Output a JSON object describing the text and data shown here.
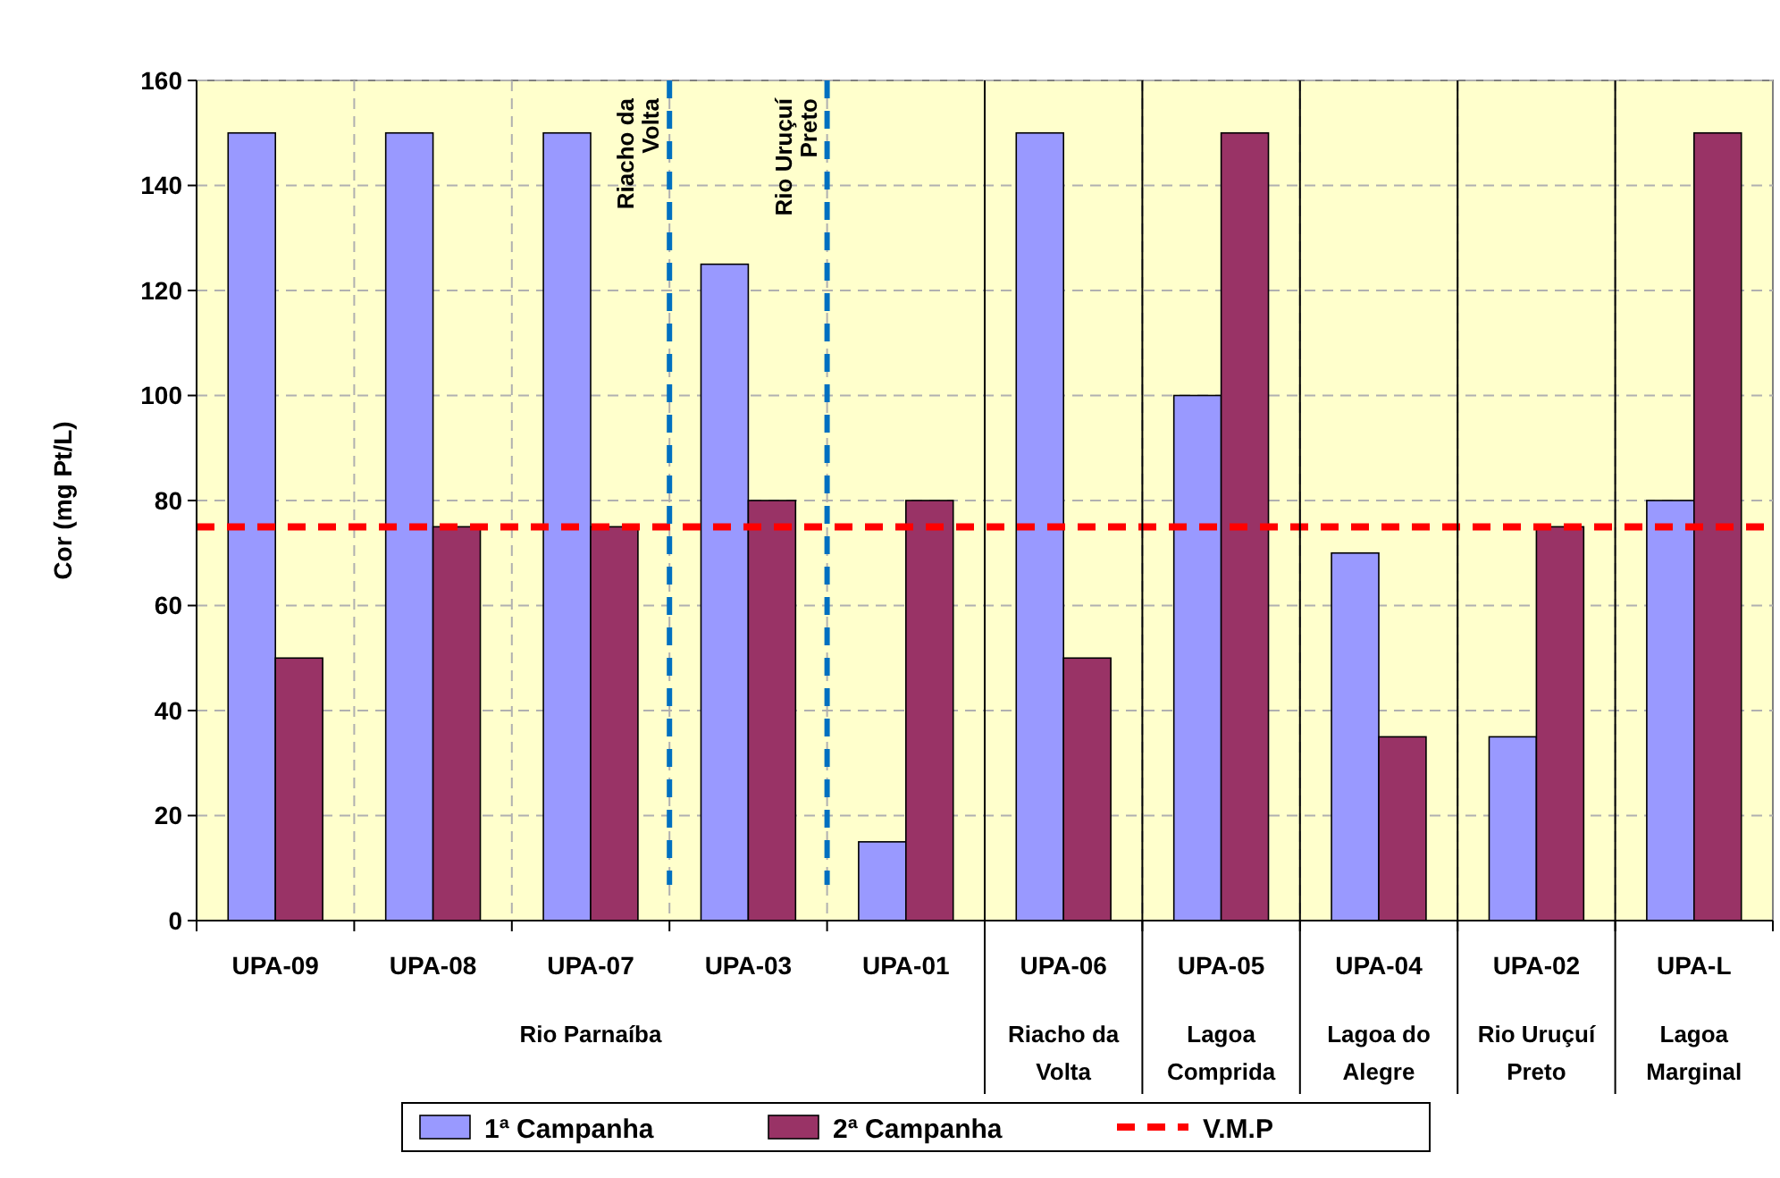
{
  "chart_data": {
    "type": "bar",
    "ylabel": "Cor (mg Pt/L)",
    "categories": [
      "UPA-09",
      "UPA-08",
      "UPA-07",
      "UPA-03",
      "UPA-01",
      "UPA-06",
      "UPA-05",
      "UPA-04",
      "UPA-02",
      "UPA-L"
    ],
    "series": [
      {
        "name": "1ª Campanha",
        "color": "#9999ff",
        "values": [
          150,
          150,
          150,
          125,
          15,
          150,
          100,
          70,
          35,
          80
        ]
      },
      {
        "name": "2ª Campanha",
        "color": "#993366",
        "values": [
          50,
          75,
          75,
          80,
          80,
          50,
          150,
          35,
          75,
          150
        ]
      }
    ],
    "ylim": [
      0,
      160
    ],
    "yticks": [
      0,
      20,
      40,
      60,
      80,
      100,
      120,
      140,
      160
    ],
    "grid": true,
    "legend": "bottom",
    "ref_lines": [
      {
        "axis": "y",
        "value": 75,
        "label": "V.M.P",
        "color": "#ff0000",
        "line_style": "dashed"
      }
    ],
    "annotations": [
      "Rio Parnaíba",
      "Riacho da Volta",
      "Lagoa Comprida",
      "Lagoa do Alegre",
      "Rio Uruçuí Preto",
      "Lagoa Marginal",
      "Riacho da Volta",
      "Rio Uruçuí Preto"
    ]
  }
}
